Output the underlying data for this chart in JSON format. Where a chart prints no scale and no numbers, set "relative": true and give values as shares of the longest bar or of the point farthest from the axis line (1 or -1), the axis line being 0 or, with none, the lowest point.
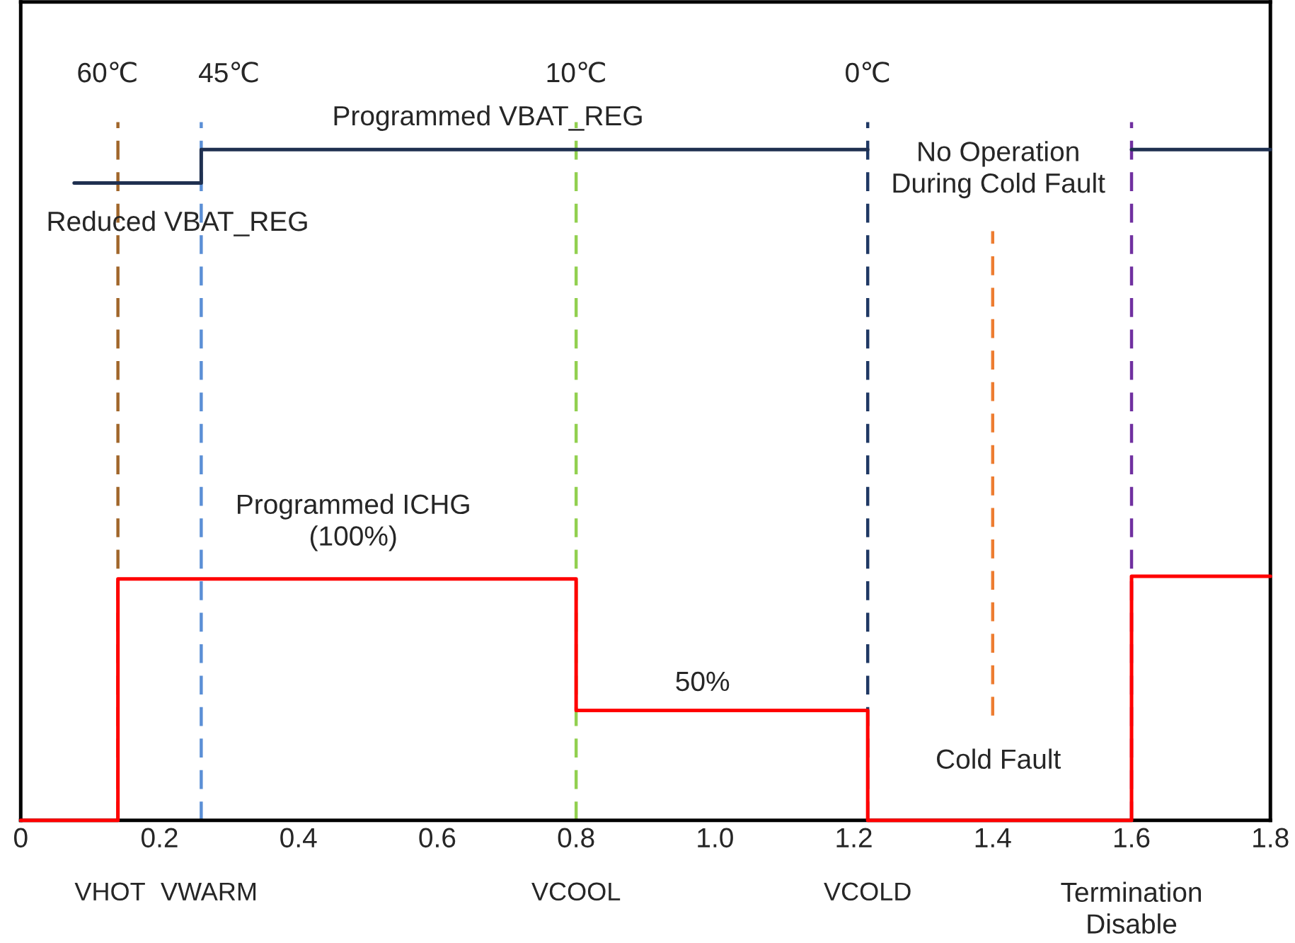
{
  "chart_data": {
    "type": "step",
    "relative": true,
    "xlim": [
      0,
      1.8
    ],
    "xticks": [
      0,
      0.2,
      0.4,
      0.6,
      0.8,
      {
        "value": 1,
        "label": "1.0"
      },
      1.2,
      1.4,
      1.6,
      1.8
    ],
    "tick_labels": "x",
    "grid": false,
    "legend": false,
    "marker": "none",
    "line_style": "solid",
    "series": [
      {
        "color": "#1f3050",
        "x": [
          0.077,
          0.26,
          1.22,
          1.6,
          1.8
        ],
        "values": [
          0.95,
          1,
          null,
          1,
          1
        ]
      },
      {
        "color": "#ff0000",
        "x": [
          0,
          0.14,
          0.8,
          1.22,
          1.6,
          1.8
        ],
        "values": [
          0,
          0.36,
          0.164,
          0,
          0.364,
          0.364
        ]
      }
    ],
    "ref_lines": [
      {
        "axis": "x",
        "value": 0.14,
        "label": "VHOT",
        "color": "#a0662a",
        "line_style": "dashed"
      },
      {
        "axis": "x",
        "value": 0.26,
        "label": "VWARM",
        "color": "#5b8fd6",
        "line_style": "dashed"
      },
      {
        "axis": "x",
        "value": 0.8,
        "label": "VCOOL",
        "color": "#92d050",
        "line_style": "dashed"
      },
      {
        "axis": "x",
        "value": 1.22,
        "label": "VCOLD",
        "color": "#1f3864",
        "line_style": "dashed"
      },
      {
        "axis": "x",
        "value": 1.4,
        "color": "#ed7d31",
        "line_style": "dashed"
      },
      {
        "axis": "x",
        "value": 1.6,
        "color": "#7030a0",
        "line_style": "dashed"
      }
    ],
    "annotations": [
      "60℃",
      "45℃",
      "10℃",
      "0℃",
      "Programmed VBAT_REG",
      "Reduced VBAT_REG",
      "No Operation\nDuring Cold Fault",
      "Programmed ICHG\n(100%)",
      "50%",
      "Cold Fault",
      "Termination\nDisable"
    ]
  }
}
